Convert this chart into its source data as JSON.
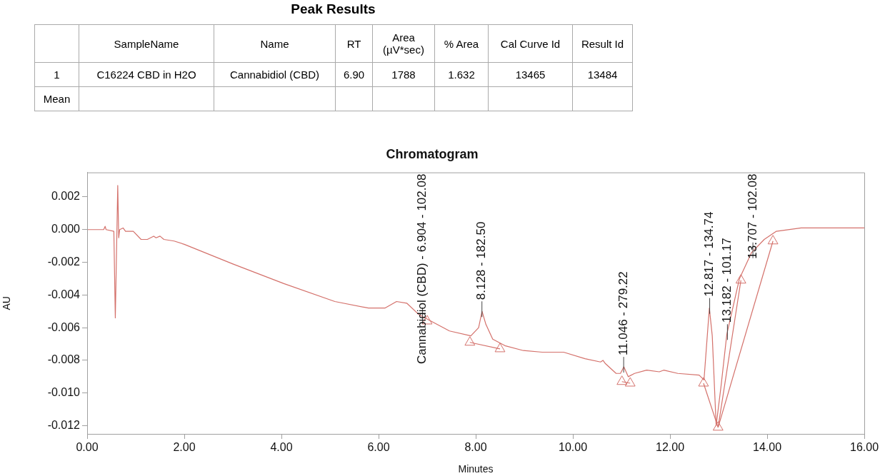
{
  "chart_data": [
    {
      "type": "other",
      "title": "Peak Results",
      "categories": [
        "SampleName",
        "Name",
        "RT",
        "Area (µV*sec)",
        "% Area",
        "Cal Curve Id",
        "Result Id"
      ],
      "y_categories": [
        "1",
        "Mean"
      ],
      "cell_labels": [
        [
          "C16224 CBD in H2O",
          "Cannabidiol (CBD)",
          "6.90",
          "1788",
          "1.632",
          "13465",
          "13484"
        ],
        [
          null,
          null,
          null,
          null,
          null,
          null,
          null
        ]
      ]
    },
    {
      "type": "line",
      "title": "Chromatogram",
      "xlabel": "Minutes",
      "ylabel": "AU",
      "xlim": [
        0,
        16
      ],
      "ylim": [
        -0.0125,
        0.0035
      ],
      "xticks": [
        {
          "value": 0,
          "label": "0.00"
        },
        {
          "value": 2,
          "label": "2.00"
        },
        {
          "value": 4,
          "label": "4.00"
        },
        {
          "value": 6,
          "label": "6.00"
        },
        {
          "value": 8,
          "label": "8.00"
        },
        {
          "value": 10,
          "label": "10.00"
        },
        {
          "value": 12,
          "label": "12.00"
        },
        {
          "value": 14,
          "label": "14.00"
        },
        {
          "value": 16,
          "label": "16.00"
        }
      ],
      "yticks": [
        -0.012,
        {
          "value": -0.01,
          "label": "-0.010"
        },
        -0.008,
        -0.006,
        -0.004,
        -0.002,
        {
          "value": 0,
          "label": "0.000"
        },
        0.002
      ],
      "grid": false,
      "legend": false,
      "marker": "none",
      "line_style": "solid",
      "series": [
        {
          "type": "line",
          "color": "#d4716b",
          "x": [
            0,
            0.34,
            0.37,
            0.39,
            0.55,
            0.58,
            0.63,
            0.65,
            0.67,
            0.74,
            0.79,
            0.95,
            1.11,
            1.24,
            1.37,
            1.42,
            1.5,
            1.58,
            1.79,
            2.0,
            3.0,
            4.05,
            5.1,
            5.79,
            6.0,
            6.13,
            6.37,
            6.58,
            6.83,
            7.08,
            7.46,
            7.9,
            8.06,
            8.13,
            8.21,
            8.35,
            8.6,
            8.98,
            9.37,
            9.81,
            10.25,
            10.57,
            10.62,
            10.67,
            10.89,
            10.98,
            11.05,
            11.14,
            11.27,
            11.52,
            11.78,
            11.87,
            12.16,
            12.6,
            12.7,
            12.81,
            12.87,
            12.95,
            13.05,
            13.17,
            13.43,
            13.68,
            13.94,
            14.19,
            14.7,
            15.33,
            16.0
          ],
          "values": [
            0,
            0,
            0.0002,
            0,
            -0.0001,
            -0.0054,
            0.0027,
            -0.0005,
            0,
            0.0001,
            -0.0001,
            -0.0001,
            -0.0006,
            -0.0006,
            -0.0004,
            -0.0005,
            -0.0004,
            -0.0006,
            -0.0007,
            -0.0009,
            -0.0021,
            -0.0033,
            -0.0044,
            -0.0048,
            -0.0048,
            -0.0048,
            -0.0044,
            -0.0045,
            -0.0052,
            -0.0056,
            -0.0062,
            -0.0065,
            -0.006,
            -0.005,
            -0.0058,
            -0.0067,
            -0.0071,
            -0.0074,
            -0.0075,
            -0.0075,
            -0.0079,
            -0.0081,
            -0.008,
            -0.0082,
            -0.0088,
            -0.0088,
            -0.0084,
            -0.009,
            -0.0088,
            -0.0086,
            -0.0087,
            -0.0086,
            -0.0088,
            -0.0089,
            -0.0092,
            -0.0048,
            -0.0065,
            -0.012,
            -0.0096,
            -0.0064,
            -0.003,
            -0.0014,
            -0.0006,
            -0.0001,
            0.0001,
            0.0001,
            0.0001
          ]
        },
        {
          "type": "line",
          "color": "#d4716b",
          "x": [
            7.88,
            8.5
          ],
          "values": [
            -0.0069,
            -0.0073
          ]
        },
        {
          "type": "line",
          "color": "#d4716b",
          "x": [
            11.01,
            11.18
          ],
          "values": [
            -0.0093,
            -0.0094
          ]
        },
        {
          "type": "line",
          "color": "#d4716b",
          "x": [
            12.69,
            12.99
          ],
          "values": [
            -0.0094,
            -0.0121
          ]
        },
        {
          "type": "line",
          "color": "#d4716b",
          "x": [
            12.99,
            13.46
          ],
          "values": [
            -0.0121,
            -0.0031
          ]
        },
        {
          "type": "line",
          "color": "#d4716b",
          "x": [
            12.99,
            14.12
          ],
          "values": [
            -0.0121,
            -0.0007
          ]
        },
        {
          "type": "scatter",
          "marker": "triangle",
          "color": "#d4716b",
          "x": [
            7.0,
            7.88,
            8.5,
            11.01,
            11.18,
            12.69,
            12.99,
            13.46,
            14.12
          ],
          "values": [
            -0.0056,
            -0.0069,
            -0.0073,
            -0.0093,
            -0.0094,
            -0.0094,
            -0.0121,
            -0.0031,
            -0.0007
          ]
        }
      ],
      "annotations": [
        {
          "text": "Cannabidiol (CBD) - 6.904 - 102.08",
          "x": 6.904,
          "y": -0.0054
        },
        {
          "text": "8.128 - 182.50",
          "x": 8.128,
          "y": -0.005
        },
        {
          "text": "11.046 - 279.22",
          "x": 11.046,
          "y": -0.0084
        },
        {
          "text": "12.817 - 134.74",
          "x": 12.817,
          "y": -0.0048
        },
        {
          "text": "13.182 - 101.17",
          "x": 13.182,
          "y": -0.0064
        },
        {
          "text": "13.707 - 102.08",
          "x": 13.707,
          "y": -0.0014
        }
      ]
    }
  ]
}
